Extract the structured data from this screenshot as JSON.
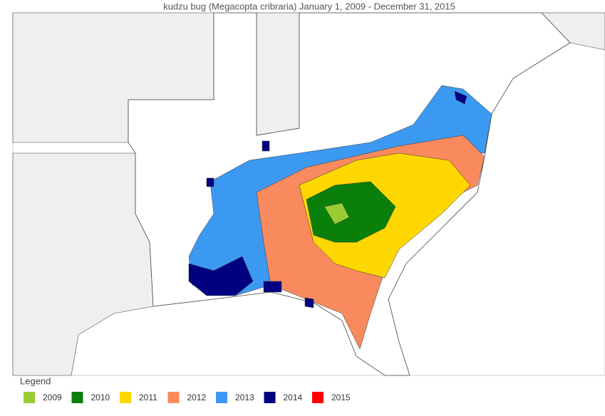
{
  "header": {
    "title": "kudzu bug (Megacopta cribraria) January 1, 2009 - December 31, 2015"
  },
  "legend": {
    "title": "Legend",
    "items": [
      {
        "label": "2009",
        "color": "#99cc33"
      },
      {
        "label": "2010",
        "color": "#0a7f0a"
      },
      {
        "label": "2011",
        "color": "#ffd700"
      },
      {
        "label": "2012",
        "color": "#f98a5d"
      },
      {
        "label": "2013",
        "color": "#3c99f2"
      },
      {
        "label": "2014",
        "color": "#000080"
      },
      {
        "label": "2015",
        "color": "#ff0000"
      }
    ]
  }
}
